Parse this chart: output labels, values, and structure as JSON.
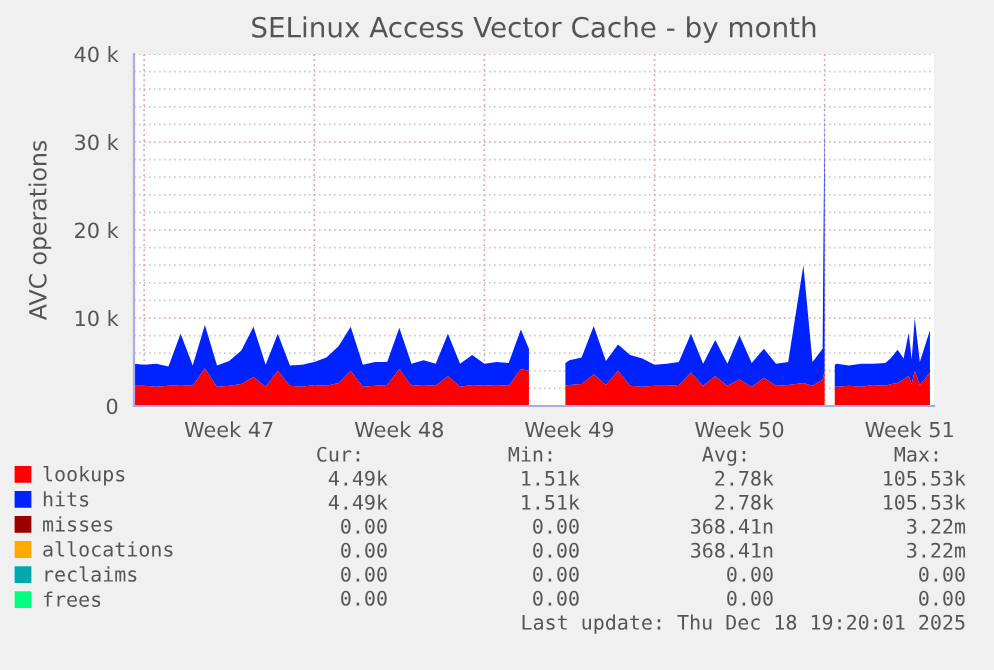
{
  "chart_data": {
    "type": "area",
    "title": "SELinux Access Vector Cache - by month",
    "ylabel": "AVC operations",
    "stacked": true,
    "legend": "bottom",
    "grid": true,
    "x": [
      "2025-11-16T14:00",
      "2025-11-17T00:00",
      "2025-11-17T12:00",
      "2025-11-18T00:00",
      "2025-11-18T12:00",
      "2025-11-19T00:00",
      "2025-11-19T12:00",
      "2025-11-20T00:00",
      "2025-11-20T12:00",
      "2025-11-21T00:00",
      "2025-11-21T12:00",
      "2025-11-22T00:00",
      "2025-11-22T12:00",
      "2025-11-23T00:00",
      "2025-11-23T12:00",
      "2025-11-24T00:00",
      "2025-11-24T12:00",
      "2025-11-25T00:00",
      "2025-11-25T12:00",
      "2025-11-26T00:00",
      "2025-11-26T12:00",
      "2025-11-27T00:00",
      "2025-11-27T12:00",
      "2025-11-28T00:00",
      "2025-11-28T12:00",
      "2025-11-29T00:00",
      "2025-11-29T12:00",
      "2025-11-30T00:00",
      "2025-11-30T12:00",
      "2025-12-01T00:00",
      "2025-12-01T12:00",
      "2025-12-02T00:00",
      "2025-12-02T12:00",
      "2025-12-02T20:00",
      "2025-12-03T12:00",
      "2025-12-04T08:00",
      "2025-12-04T12:00",
      "2025-12-05T00:00",
      "2025-12-05T12:00",
      "2025-12-06T00:00",
      "2025-12-06T12:00",
      "2025-12-07T00:00",
      "2025-12-07T12:00",
      "2025-12-08T00:00",
      "2025-12-08T12:00",
      "2025-12-09T00:00",
      "2025-12-09T12:00",
      "2025-12-10T00:00",
      "2025-12-10T12:00",
      "2025-12-11T00:00",
      "2025-12-11T12:00",
      "2025-12-12T00:00",
      "2025-12-12T12:00",
      "2025-12-13T00:00",
      "2025-12-13T12:00",
      "2025-12-14T03:00",
      "2025-12-14T12:00",
      "2025-12-14T22:00",
      "2025-12-15T00:00",
      "2025-12-15T04:00",
      "2025-12-15T10:00",
      "2025-12-15T12:00",
      "2025-12-16T00:00",
      "2025-12-16T12:00",
      "2025-12-17T00:00",
      "2025-12-17T12:00",
      "2025-12-17T18:00",
      "2025-12-18T00:00",
      "2025-12-18T06:00",
      "2025-12-18T11:00",
      "2025-12-18T14:00",
      "2025-12-18T17:00",
      "2025-12-18T22:00",
      "2025-12-19T08:00"
    ],
    "series": [
      {
        "name": "lookups",
        "color": "#ff0000",
        "values": [
          2300,
          2300,
          2200,
          2300,
          2400,
          2300,
          4300,
          2200,
          2300,
          2500,
          3300,
          2200,
          4000,
          2300,
          2200,
          2400,
          2300,
          2600,
          4000,
          2200,
          2300,
          2400,
          4200,
          2300,
          2400,
          2300,
          3400,
          2200,
          2400,
          2300,
          2400,
          2300,
          4200,
          4000,
          null,
          2300,
          2400,
          2500,
          3600,
          2400,
          4000,
          2300,
          2200,
          2300,
          2300,
          2400,
          3800,
          2300,
          3400,
          2300,
          3000,
          2200,
          3200,
          2300,
          2400,
          2600,
          2300,
          3000,
          4000,
          null,
          2300,
          2200,
          2300,
          2200,
          2400,
          2300,
          2500,
          2600,
          3000,
          3400,
          2500,
          4000,
          2400,
          3800
        ]
      },
      {
        "name": "hits",
        "color": "#0022ff",
        "values": [
          2500,
          2400,
          2600,
          2200,
          5800,
          2300,
          4900,
          2400,
          2800,
          3800,
          5700,
          2500,
          4200,
          2300,
          2500,
          2600,
          3200,
          4200,
          5000,
          2500,
          2700,
          2600,
          4700,
          2500,
          2800,
          2500,
          4800,
          2600,
          3400,
          2500,
          2600,
          2600,
          4500,
          2500,
          null,
          2600,
          2800,
          3000,
          5500,
          2700,
          3000,
          3500,
          3200,
          2400,
          2500,
          2600,
          4400,
          2500,
          4100,
          2500,
          5000,
          2700,
          3300,
          2500,
          2600,
          13400,
          2700,
          3500,
          31000,
          null,
          2400,
          2600,
          2300,
          2600,
          2400,
          2600,
          3000,
          3800,
          2400,
          4900,
          2800,
          6000,
          2600,
          4800
        ]
      },
      {
        "name": "misses",
        "color": "#990000",
        "values": [
          null,
          null,
          null,
          null,
          null,
          null,
          null,
          null,
          null,
          null,
          null,
          null,
          null,
          null,
          null,
          null,
          null,
          null,
          null,
          null,
          null,
          null,
          null,
          null,
          null,
          null,
          null,
          null,
          null,
          null,
          null,
          null,
          null,
          null,
          null,
          null,
          null,
          null,
          null,
          null,
          null,
          null,
          null,
          null,
          null,
          null,
          null,
          null,
          null,
          null,
          null,
          null,
          null,
          null,
          null,
          null,
          null,
          null,
          null,
          null,
          null,
          null,
          null,
          null,
          null,
          null,
          null,
          null,
          null,
          null,
          null,
          null,
          null,
          null
        ]
      },
      {
        "name": "allocations",
        "color": "#ffaa00",
        "values": [
          null,
          null,
          null,
          null,
          null,
          null,
          null,
          null,
          null,
          null,
          null,
          null,
          null,
          null,
          null,
          null,
          null,
          null,
          null,
          null,
          null,
          null,
          null,
          null,
          null,
          null,
          null,
          null,
          null,
          null,
          null,
          null,
          null,
          null,
          null,
          null,
          null,
          null,
          null,
          null,
          null,
          null,
          null,
          null,
          null,
          null,
          null,
          null,
          null,
          null,
          null,
          null,
          null,
          null,
          null,
          null,
          null,
          null,
          null,
          null,
          null,
          null,
          null,
          null,
          null,
          null,
          null,
          null,
          null,
          null,
          null,
          null,
          null,
          null
        ]
      },
      {
        "name": "reclaims",
        "color": "#00aaaa",
        "values": [
          null,
          null,
          null,
          null,
          null,
          null,
          null,
          null,
          null,
          null,
          null,
          null,
          null,
          null,
          null,
          null,
          null,
          null,
          null,
          null,
          null,
          null,
          null,
          null,
          null,
          null,
          null,
          null,
          null,
          null,
          null,
          null,
          null,
          null,
          null,
          null,
          null,
          null,
          null,
          null,
          null,
          null,
          null,
          null,
          null,
          null,
          null,
          null,
          null,
          null,
          null,
          null,
          null,
          null,
          null,
          null,
          null,
          null,
          null,
          null,
          null,
          null,
          null,
          null,
          null,
          null,
          null,
          null,
          null,
          null,
          null,
          null,
          null,
          null
        ]
      },
      {
        "name": "frees",
        "color": "#00ff80",
        "values": [
          null,
          null,
          null,
          null,
          null,
          null,
          null,
          null,
          null,
          null,
          null,
          null,
          null,
          null,
          null,
          null,
          null,
          null,
          null,
          null,
          null,
          null,
          null,
          null,
          null,
          null,
          null,
          null,
          null,
          null,
          null,
          null,
          null,
          null,
          null,
          null,
          null,
          null,
          null,
          null,
          null,
          null,
          null,
          null,
          null,
          null,
          null,
          null,
          null,
          null,
          null,
          null,
          null,
          null,
          null,
          null,
          null,
          null,
          null,
          null,
          null,
          null,
          null,
          null,
          null,
          null,
          null,
          null,
          null,
          null,
          null,
          null,
          null,
          null
        ]
      }
    ],
    "xlim": [
      "2025-11-16T14:00",
      "2025-12-19T12:00"
    ],
    "xticks": [
      {
        "value": "2025-11-17",
        "label": null
      },
      {
        "value": "2025-11-20T12:00",
        "label": "Week 47"
      },
      {
        "value": "2025-11-24",
        "label": null
      },
      {
        "value": "2025-11-27T12:00",
        "label": "Week 48"
      },
      {
        "value": "2025-12-01",
        "label": null
      },
      {
        "value": "2025-12-04T12:00",
        "label": "Week 49"
      },
      {
        "value": "2025-12-08",
        "label": null
      },
      {
        "value": "2025-12-11T12:00",
        "label": "Week 50"
      },
      {
        "value": "2025-12-15",
        "label": null
      },
      {
        "value": "2025-12-18T12:00",
        "label": "Week 51"
      }
    ],
    "ylim": [
      0,
      40000
    ],
    "yticks": [
      {
        "value": 0,
        "label": "0"
      },
      {
        "value": 2000,
        "label": null
      },
      {
        "value": 4000,
        "label": null
      },
      {
        "value": 6000,
        "label": null
      },
      {
        "value": 8000,
        "label": null
      },
      {
        "value": 10000,
        "label": "10 k"
      },
      {
        "value": 12000,
        "label": null
      },
      {
        "value": 14000,
        "label": null
      },
      {
        "value": 16000,
        "label": null
      },
      {
        "value": 18000,
        "label": null
      },
      {
        "value": 20000,
        "label": "20 k"
      },
      {
        "value": 22000,
        "label": null
      },
      {
        "value": 24000,
        "label": null
      },
      {
        "value": 26000,
        "label": null
      },
      {
        "value": 28000,
        "label": null
      },
      {
        "value": 30000,
        "label": "30 k"
      },
      {
        "value": 32000,
        "label": null
      },
      {
        "value": 34000,
        "label": null
      },
      {
        "value": 36000,
        "label": null
      },
      {
        "value": 38000,
        "label": null
      },
      {
        "value": 40000,
        "label": "40 k"
      }
    ],
    "annotations": [
      "Cur:",
      "Min:",
      "Avg:",
      "Max:",
      "4.49k",
      "1.51k",
      "2.78k",
      "105.53k",
      "4.49k",
      "1.51k",
      "2.78k",
      "105.53k",
      "0.00",
      "0.00",
      "368.41n",
      "3.22m",
      "0.00",
      "0.00",
      "368.41n",
      "3.22m",
      "0.00",
      "0.00",
      "0.00",
      "0.00",
      "0.00",
      "0.00",
      "0.00",
      "0.00",
      "Last update: Thu Dec 18 19:20:01 2025"
    ]
  }
}
